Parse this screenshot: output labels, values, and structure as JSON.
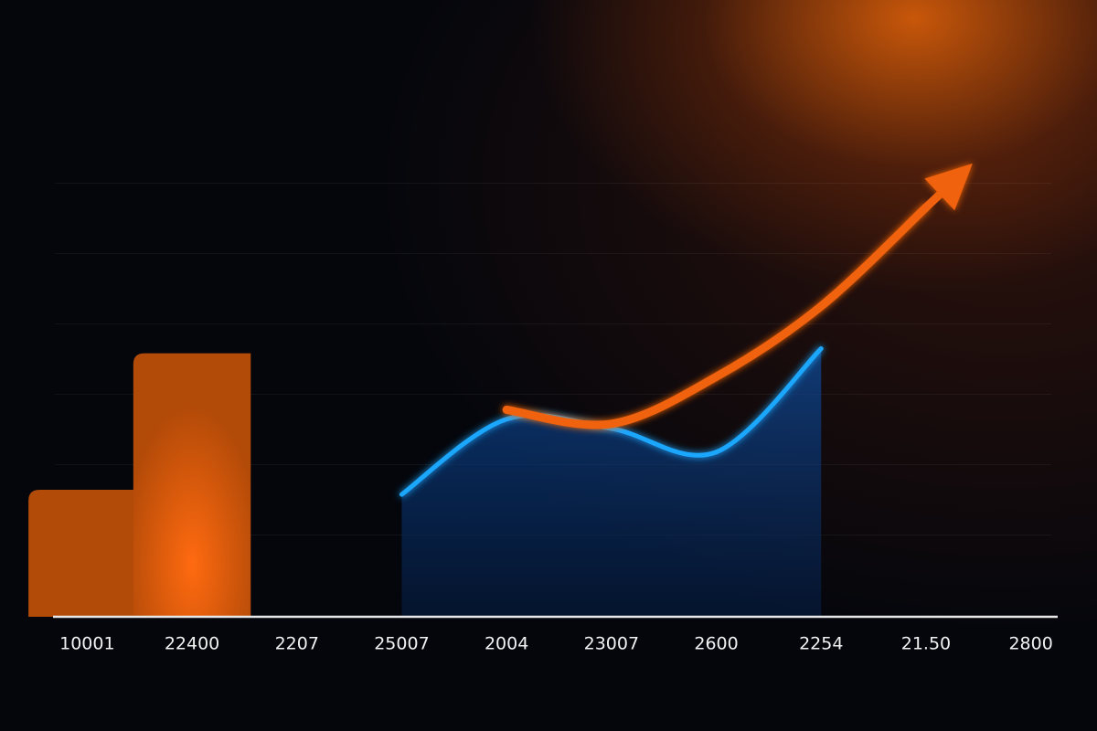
{
  "chart_data": {
    "type": "combo",
    "categories": [
      "10001",
      "22400",
      "2207",
      "25007",
      "2004",
      "23007",
      "2600",
      "2254",
      "21.50",
      "2800"
    ],
    "ylim": [
      0,
      100
    ],
    "series": [
      {
        "type": "bar",
        "color": "#b24a08",
        "values": [
          27,
          56,
          null,
          null,
          null,
          null,
          null,
          null,
          null,
          null
        ]
      },
      {
        "type": "area",
        "color": "#1ea7ff",
        "values": [
          null,
          null,
          null,
          26,
          42,
          40,
          35,
          57,
          null,
          null
        ]
      },
      {
        "type": "line",
        "color": "#f0620f",
        "values": [
          null,
          null,
          null,
          null,
          44,
          41,
          51,
          66,
          87,
          null
        ]
      }
    ]
  }
}
